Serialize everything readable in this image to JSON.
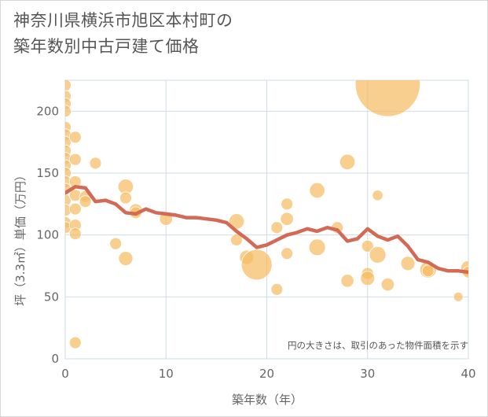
{
  "title_lines": [
    "神奈川県横浜市旭区本村町の",
    "築年数別中古戸建て価格"
  ],
  "note": "円の大きさは、取引のあった物件面積を示す",
  "colors": {
    "bubble": "#f5bd64",
    "line": "#d36a55",
    "grid": "#cfdce6",
    "plot_bg": "#ffffff"
  },
  "chart_data": {
    "type": "scatter",
    "xlabel": "築年数（年）",
    "ylabel": "坪（3.3㎡）単価（万円）",
    "xlim": [
      0,
      40
    ],
    "ylim": [
      0,
      225
    ],
    "xticks": [
      0,
      10,
      20,
      30,
      40
    ],
    "yticks": [
      0,
      50,
      100,
      150,
      200
    ],
    "grid": true,
    "bubbles": [
      {
        "x": 0,
        "y": 221,
        "s": 1
      },
      {
        "x": 0,
        "y": 212,
        "s": 1
      },
      {
        "x": 0,
        "y": 206,
        "s": 1
      },
      {
        "x": 0,
        "y": 200,
        "s": 1
      },
      {
        "x": 0,
        "y": 187,
        "s": 1
      },
      {
        "x": 0,
        "y": 181,
        "s": 1
      },
      {
        "x": 0,
        "y": 175,
        "s": 1
      },
      {
        "x": 0,
        "y": 168,
        "s": 1
      },
      {
        "x": 0,
        "y": 162,
        "s": 1
      },
      {
        "x": 0,
        "y": 156,
        "s": 1
      },
      {
        "x": 0,
        "y": 150,
        "s": 1
      },
      {
        "x": 0,
        "y": 143,
        "s": 1
      },
      {
        "x": 0,
        "y": 137,
        "s": 1
      },
      {
        "x": 0,
        "y": 128,
        "s": 1
      },
      {
        "x": 0,
        "y": 120,
        "s": 1
      },
      {
        "x": 0,
        "y": 110,
        "s": 1
      },
      {
        "x": 0,
        "y": 106,
        "s": 1
      },
      {
        "x": 1,
        "y": 179,
        "s": 1
      },
      {
        "x": 1,
        "y": 161,
        "s": 1
      },
      {
        "x": 1,
        "y": 143,
        "s": 1
      },
      {
        "x": 1,
        "y": 132,
        "s": 1
      },
      {
        "x": 1,
        "y": 121,
        "s": 1
      },
      {
        "x": 1,
        "y": 108,
        "s": 1
      },
      {
        "x": 1,
        "y": 101,
        "s": 1
      },
      {
        "x": 1,
        "y": 13,
        "s": 1
      },
      {
        "x": 2,
        "y": 131,
        "s": 1
      },
      {
        "x": 2,
        "y": 127,
        "s": 1
      },
      {
        "x": 3,
        "y": 158,
        "s": 1
      },
      {
        "x": 5,
        "y": 93,
        "s": 1
      },
      {
        "x": 6,
        "y": 139,
        "s": 1.3
      },
      {
        "x": 6,
        "y": 130,
        "s": 1
      },
      {
        "x": 6,
        "y": 81,
        "s": 1.2
      },
      {
        "x": 7,
        "y": 120,
        "s": 1.1
      },
      {
        "x": 7,
        "y": 118,
        "s": 1
      },
      {
        "x": 10,
        "y": 113,
        "s": 1.1
      },
      {
        "x": 17,
        "y": 111,
        "s": 1.3
      },
      {
        "x": 17,
        "y": 96,
        "s": 1
      },
      {
        "x": 18,
        "y": 82,
        "s": 1.2
      },
      {
        "x": 19,
        "y": 76,
        "s": 2.6
      },
      {
        "x": 21,
        "y": 106,
        "s": 1
      },
      {
        "x": 21,
        "y": 56,
        "s": 1
      },
      {
        "x": 22,
        "y": 125,
        "s": 1
      },
      {
        "x": 22,
        "y": 113,
        "s": 1.1
      },
      {
        "x": 22,
        "y": 85,
        "s": 1
      },
      {
        "x": 25,
        "y": 136,
        "s": 1.3
      },
      {
        "x": 25,
        "y": 90,
        "s": 1.4
      },
      {
        "x": 27,
        "y": 106,
        "s": 1
      },
      {
        "x": 28,
        "y": 159,
        "s": 1.3
      },
      {
        "x": 28,
        "y": 63,
        "s": 1.1
      },
      {
        "x": 30,
        "y": 91,
        "s": 1
      },
      {
        "x": 30,
        "y": 69,
        "s": 1
      },
      {
        "x": 30,
        "y": 65,
        "s": 1.2
      },
      {
        "x": 31,
        "y": 132,
        "s": 0.9
      },
      {
        "x": 31,
        "y": 84,
        "s": 1.4
      },
      {
        "x": 32,
        "y": 222,
        "s": 5.5
      },
      {
        "x": 32,
        "y": 60,
        "s": 1.1
      },
      {
        "x": 34,
        "y": 77,
        "s": 1.2
      },
      {
        "x": 36,
        "y": 72,
        "s": 1.4
      },
      {
        "x": 36,
        "y": 71,
        "s": 1
      },
      {
        "x": 39,
        "y": 50,
        "s": 0.8
      },
      {
        "x": 40,
        "y": 73,
        "s": 1.3
      },
      {
        "x": 40,
        "y": 70,
        "s": 1
      }
    ],
    "trend": {
      "x": [
        0,
        1,
        2,
        3,
        4,
        5,
        6,
        7,
        8,
        9,
        10,
        11,
        12,
        13,
        14,
        15,
        16,
        17,
        18,
        19,
        20,
        21,
        22,
        23,
        24,
        25,
        26,
        27,
        28,
        29,
        30,
        31,
        32,
        33,
        34,
        35,
        36,
        37,
        38,
        39,
        40
      ],
      "y": [
        134,
        139,
        138,
        127,
        128,
        125,
        118,
        117,
        121,
        118,
        117,
        116,
        114,
        114,
        113,
        112,
        110,
        103,
        97,
        90,
        92,
        96,
        100,
        102,
        105,
        103,
        106,
        104,
        95,
        97,
        105,
        99,
        96,
        99,
        91,
        80,
        78,
        73,
        71,
        71,
        70
      ]
    }
  }
}
